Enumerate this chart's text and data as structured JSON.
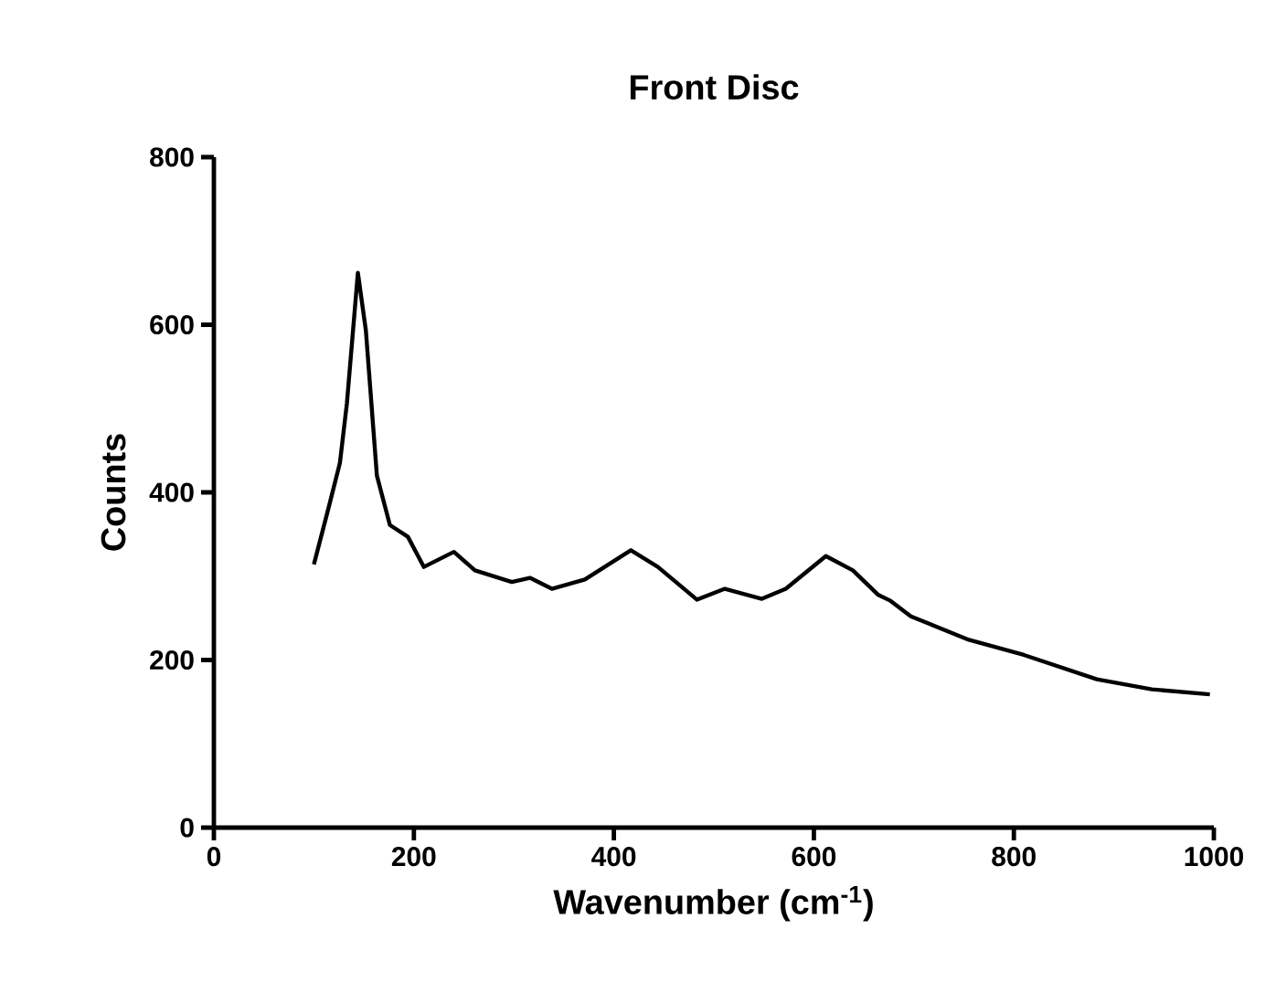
{
  "chart_data": {
    "type": "line",
    "title": "Front Disc",
    "xlabel": "Wavenumber (cm$^{-1}$)",
    "ylabel": "Counts",
    "xlim": [
      0,
      1000
    ],
    "ylim": [
      0,
      800
    ],
    "xticks": [
      0,
      200,
      400,
      600,
      800,
      1000
    ],
    "yticks": [
      0,
      200,
      400,
      600,
      800
    ],
    "series": [
      {
        "color": "#000000",
        "x": [
          100,
          115,
          126,
          133,
          144,
          152,
          163,
          176,
          194,
          210,
          240,
          261,
          298,
          316,
          338,
          371,
          417,
          444,
          483,
          511,
          548,
          572,
          612,
          639,
          664,
          676,
          697,
          755,
          810,
          883,
          938,
          996
        ],
        "values": [
          314,
          383,
          435,
          506,
          662,
          593,
          420,
          361,
          347,
          311,
          329,
          307,
          293,
          298,
          285,
          296,
          331,
          311,
          272,
          285,
          273,
          285,
          324,
          307,
          278,
          271,
          252,
          224,
          206,
          177,
          165,
          159
        ]
      }
    ]
  }
}
